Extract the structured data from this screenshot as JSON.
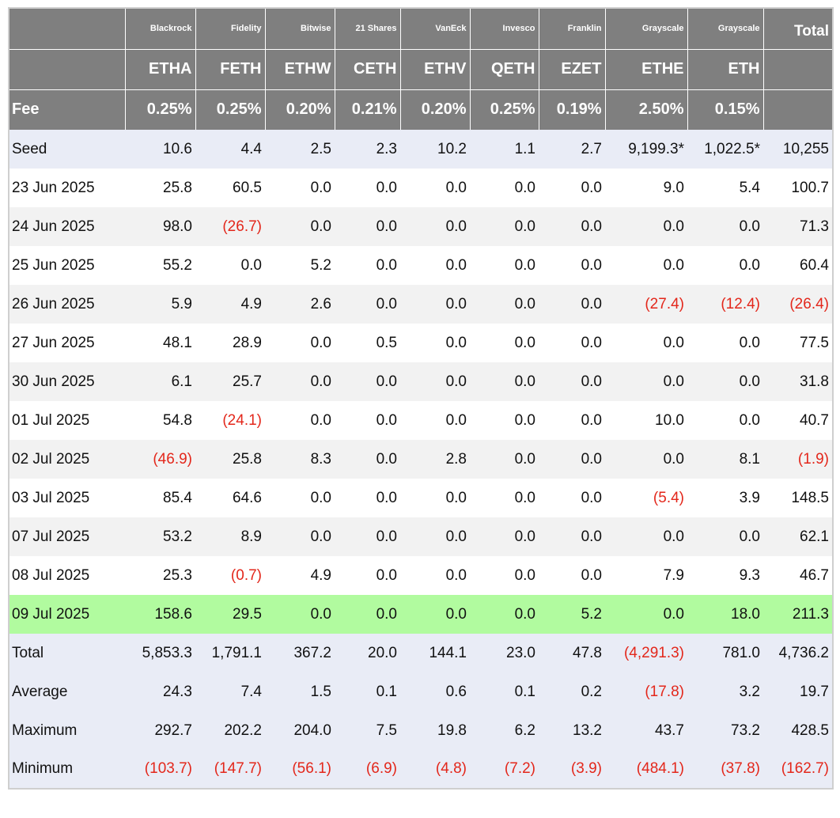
{
  "colors": {
    "header_bg": "#7f7f7f",
    "seed_bg": "#e9ecf6",
    "alt_row_bg": "#f2f2f2",
    "highlight_bg": "#b1fb9f",
    "negative_text": "#e3271b"
  },
  "header": {
    "issuers": [
      "Blackrock",
      "Fidelity",
      "Bitwise",
      "21 Shares",
      "VanEck",
      "Invesco",
      "Franklin",
      "Grayscale",
      "Grayscale"
    ],
    "total_label": "Total",
    "tickers": [
      "ETHA",
      "FETH",
      "ETHW",
      "CETH",
      "ETHV",
      "QETH",
      "EZET",
      "ETHE",
      "ETH"
    ],
    "fee_label": "Fee",
    "fees": [
      "0.25%",
      "0.25%",
      "0.20%",
      "0.21%",
      "0.20%",
      "0.25%",
      "0.19%",
      "2.50%",
      "0.15%"
    ]
  },
  "rows": [
    {
      "label": "Seed",
      "values": [
        "10.6",
        "4.4",
        "2.5",
        "2.3",
        "10.2",
        "1.1",
        "2.7",
        "9,199.3*",
        "1,022.5*",
        "10,255"
      ]
    },
    {
      "label": "23 Jun 2025",
      "values": [
        "25.8",
        "60.5",
        "0.0",
        "0.0",
        "0.0",
        "0.0",
        "0.0",
        "9.0",
        "5.4",
        "100.7"
      ]
    },
    {
      "label": "24 Jun 2025",
      "values": [
        "98.0",
        "(26.7)",
        "0.0",
        "0.0",
        "0.0",
        "0.0",
        "0.0",
        "0.0",
        "0.0",
        "71.3"
      ]
    },
    {
      "label": "25 Jun 2025",
      "values": [
        "55.2",
        "0.0",
        "5.2",
        "0.0",
        "0.0",
        "0.0",
        "0.0",
        "0.0",
        "0.0",
        "60.4"
      ]
    },
    {
      "label": "26 Jun 2025",
      "values": [
        "5.9",
        "4.9",
        "2.6",
        "0.0",
        "0.0",
        "0.0",
        "0.0",
        "(27.4)",
        "(12.4)",
        "(26.4)"
      ]
    },
    {
      "label": "27 Jun 2025",
      "values": [
        "48.1",
        "28.9",
        "0.0",
        "0.5",
        "0.0",
        "0.0",
        "0.0",
        "0.0",
        "0.0",
        "77.5"
      ]
    },
    {
      "label": "30 Jun 2025",
      "values": [
        "6.1",
        "25.7",
        "0.0",
        "0.0",
        "0.0",
        "0.0",
        "0.0",
        "0.0",
        "0.0",
        "31.8"
      ]
    },
    {
      "label": "01 Jul 2025",
      "values": [
        "54.8",
        "(24.1)",
        "0.0",
        "0.0",
        "0.0",
        "0.0",
        "0.0",
        "10.0",
        "0.0",
        "40.7"
      ]
    },
    {
      "label": "02 Jul 2025",
      "values": [
        "(46.9)",
        "25.8",
        "8.3",
        "0.0",
        "2.8",
        "0.0",
        "0.0",
        "0.0",
        "8.1",
        "(1.9)"
      ]
    },
    {
      "label": "03 Jul 2025",
      "values": [
        "85.4",
        "64.6",
        "0.0",
        "0.0",
        "0.0",
        "0.0",
        "0.0",
        "(5.4)",
        "3.9",
        "148.5"
      ]
    },
    {
      "label": "07 Jul 2025",
      "values": [
        "53.2",
        "8.9",
        "0.0",
        "0.0",
        "0.0",
        "0.0",
        "0.0",
        "0.0",
        "0.0",
        "62.1"
      ]
    },
    {
      "label": "08 Jul 2025",
      "values": [
        "25.3",
        "(0.7)",
        "4.9",
        "0.0",
        "0.0",
        "0.0",
        "0.0",
        "7.9",
        "9.3",
        "46.7"
      ]
    },
    {
      "label": "09 Jul 2025",
      "values": [
        "158.6",
        "29.5",
        "0.0",
        "0.0",
        "0.0",
        "0.0",
        "5.2",
        "0.0",
        "18.0",
        "211.3"
      ]
    }
  ],
  "stats": [
    {
      "label": "Total",
      "values": [
        "5,853.3",
        "1,791.1",
        "367.2",
        "20.0",
        "144.1",
        "23.0",
        "47.8",
        "(4,291.3)",
        "781.0",
        "4,736.2"
      ]
    },
    {
      "label": "Average",
      "values": [
        "24.3",
        "7.4",
        "1.5",
        "0.1",
        "0.6",
        "0.1",
        "0.2",
        "(17.8)",
        "3.2",
        "19.7"
      ]
    },
    {
      "label": "Maximum",
      "values": [
        "292.7",
        "202.2",
        "204.0",
        "7.5",
        "19.8",
        "6.2",
        "13.2",
        "43.7",
        "73.2",
        "428.5"
      ]
    },
    {
      "label": "Minimum",
      "values": [
        "(103.7)",
        "(147.7)",
        "(56.1)",
        "(6.9)",
        "(4.8)",
        "(7.2)",
        "(3.9)",
        "(484.1)",
        "(37.8)",
        "(162.7)"
      ]
    }
  ]
}
